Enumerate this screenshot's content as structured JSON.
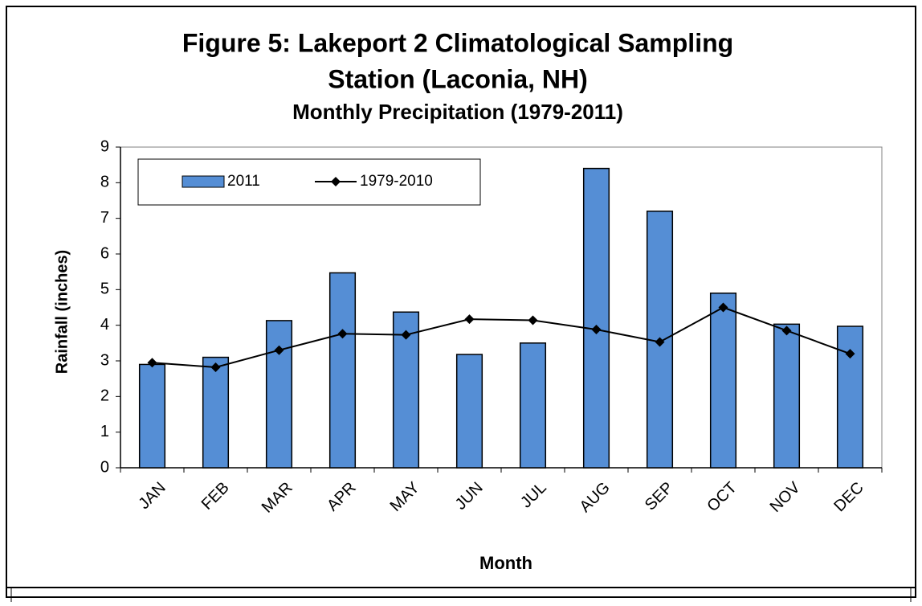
{
  "chart_data": {
    "type": "bar",
    "title": [
      "Figure 5: Lakeport 2 Climatological Sampling",
      "Station (Laconia, NH)"
    ],
    "subtitle": "Monthly Precipitation (1979-2011)",
    "x_label": "Month",
    "y_label": "Rainfall (inches)",
    "categories": [
      "JAN",
      "FEB",
      "MAR",
      "APR",
      "MAY",
      "JUN",
      "JUL",
      "AUG",
      "SEP",
      "OCT",
      "NOV",
      "DEC"
    ],
    "series": [
      {
        "name": "2011",
        "type": "bar",
        "color": "#558ed5",
        "values": [
          2.9,
          3.1,
          4.13,
          5.47,
          4.37,
          3.18,
          3.5,
          8.4,
          7.2,
          4.9,
          4.03,
          3.97
        ]
      },
      {
        "name": "1979-2010",
        "type": "line",
        "color": "#000000",
        "values": [
          2.95,
          2.82,
          3.3,
          3.76,
          3.73,
          4.17,
          4.14,
          3.88,
          3.53,
          4.5,
          3.85,
          3.2
        ]
      }
    ],
    "ylim": [
      0,
      9
    ],
    "yticks": [
      0,
      1,
      2,
      3,
      4,
      5,
      6,
      7,
      8,
      9
    ],
    "grid": false,
    "legend": "top-left"
  }
}
